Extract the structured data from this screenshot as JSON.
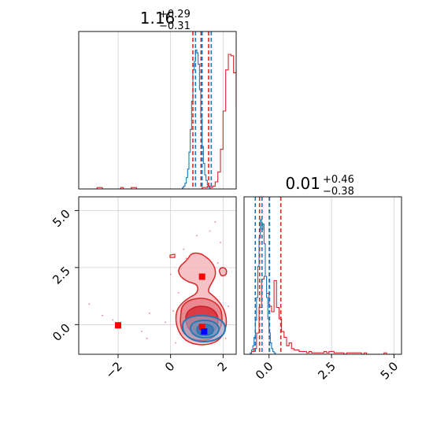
{
  "chart_data": {
    "type": "corner",
    "grid": true,
    "series": [
      {
        "color": "#d62728"
      },
      {
        "color": "#1f77b4"
      }
    ],
    "panels": [
      {
        "id": "hist-param-1",
        "type": "histogram",
        "title_value": "1.16",
        "title_plus": "+0.29",
        "title_minus": "−0.31",
        "xlim": [
          -3.5,
          2.5
        ],
        "ylim": [
          0,
          1
        ],
        "quantile_lines": {
          "red": [
            0.85,
            1.16,
            1.45
          ],
          "blue": [
            0.95,
            1.2,
            1.55
          ]
        },
        "red_hist": {
          "x_start": -3.0,
          "bin_width": 0.1,
          "counts": [
            0,
            0,
            0.01,
            0.01,
            0,
            0,
            0,
            0,
            0,
            0,
            0,
            0.01,
            0,
            0,
            0,
            0.01,
            0.01,
            0,
            0,
            0,
            0,
            0,
            0,
            0,
            0,
            0,
            0,
            0,
            0,
            0,
            0,
            0,
            0,
            0,
            0,
            0,
            0,
            0,
            0,
            0,
            0,
            0,
            0.01,
            0.01,
            0.02,
            0.01,
            0.02,
            0.05,
            0.12,
            0.28,
            0.55,
            0.84,
            0.95,
            0.94,
            0.82,
            0.58,
            0.4,
            0.2,
            0.08,
            0.03
          ]
        },
        "blue_hist": {
          "x_start": 0.4,
          "bin_width": 0.05,
          "counts": [
            0,
            0.01,
            0.02,
            0.04,
            0.08,
            0.14,
            0.26,
            0.42,
            0.62,
            0.84,
            0.9,
            0.98,
            0.96,
            0.88,
            0.7,
            0.5,
            0.3,
            0.18,
            0.1,
            0.06,
            0.03,
            0.01,
            0
          ]
        }
      },
      {
        "id": "hist-param-2",
        "type": "histogram",
        "title_value": "0.01",
        "title_plus": "+0.46",
        "title_minus": "−0.38",
        "xlim": [
          -1.0,
          5.3
        ],
        "ylim": [
          0,
          1
        ],
        "xticks": [
          "0.0",
          "2.5",
          "5.0"
        ],
        "quantile_lines": {
          "red": [
            -0.38,
            0.01,
            0.47
          ],
          "blue": [
            -0.55,
            -0.28,
            0.02
          ]
        },
        "red_hist": {
          "x_start": -0.8,
          "bin_width": 0.1,
          "counts": [
            0,
            0.02,
            0.04,
            0.15,
            0.33,
            0.53,
            0.55,
            0.43,
            0.34,
            0.3,
            0.52,
            0.33,
            0.25,
            0.16,
            0.12,
            0.06,
            0.08,
            0.04,
            0.03,
            0.03,
            0.02,
            0.02,
            0.02,
            0.01,
            0.02,
            0.01,
            0.01,
            0.01,
            0.01,
            0.01,
            0.02,
            0.01,
            0.02,
            0.02,
            0.01,
            0.01,
            0.01,
            0.01,
            0.0,
            0.01,
            0.01,
            0.01,
            0.01,
            0.01,
            0.01,
            0.0,
            0.01,
            0.0,
            0.0,
            0.0,
            0.0,
            0.0,
            0.0,
            0.0,
            0.01,
            0.0,
            0.0,
            0.0
          ]
        },
        "blue_hist": {
          "x_start": -0.8,
          "bin_width": 0.05,
          "counts": [
            0,
            0.01,
            0.03,
            0.06,
            0.12,
            0.24,
            0.4,
            0.62,
            0.82,
            0.95,
            0.88,
            0.92,
            0.78,
            0.55,
            0.4,
            0.25,
            0.15,
            0.08,
            0.04,
            0.02,
            0.01,
            0
          ]
        }
      },
      {
        "id": "contour-panel",
        "type": "2d-contour",
        "xlim": [
          -3.5,
          2.5
        ],
        "ylim": [
          -1.3,
          5.6
        ],
        "xticks": [
          "−2",
          "0",
          "2"
        ],
        "yticks": [
          "0.0",
          "2.5",
          "5.0"
        ],
        "markers": {
          "red": [
            [
              -2.0,
              -0.03
            ],
            [
              1.2,
              2.1
            ],
            [
              1.2,
              -0.1
            ]
          ],
          "blue": [
            [
              1.28,
              -0.3
            ]
          ]
        }
      }
    ]
  }
}
